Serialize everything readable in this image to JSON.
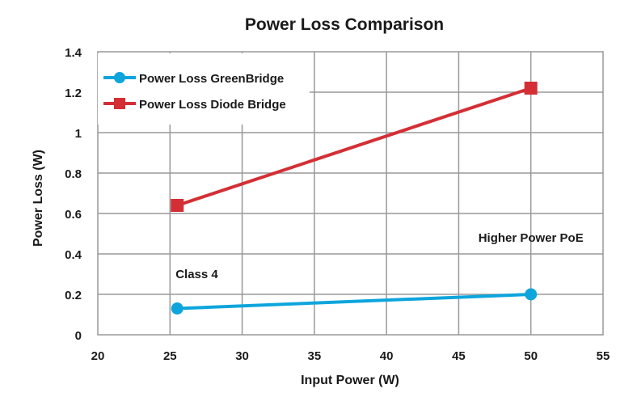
{
  "chart_data": {
    "type": "line",
    "title": "Power Loss Comparison",
    "xlabel": "Input Power (W)",
    "ylabel": "Power Loss (W)",
    "xlim": [
      20,
      55
    ],
    "ylim": [
      0,
      1.4
    ],
    "xticks": [
      20,
      25,
      30,
      35,
      40,
      45,
      50,
      55
    ],
    "yticks": [
      0,
      0.2,
      0.4,
      0.6,
      0.8,
      1,
      1.2,
      1.4
    ],
    "ytick_labels": [
      "0",
      "0.2",
      "0.4",
      "0.6",
      "0.8",
      "1",
      "1.2",
      "1.4"
    ],
    "grid": true,
    "legend_position": "top-left",
    "series": [
      {
        "name": "Power Loss GreenBridge",
        "color": "#0ea5dc",
        "marker": "circle",
        "x": [
          25.5,
          50
        ],
        "y": [
          0.13,
          0.2
        ]
      },
      {
        "name": "Power Loss Diode Bridge",
        "color": "#d32f35",
        "marker": "square",
        "x": [
          25.5,
          50
        ],
        "y": [
          0.64,
          1.22
        ]
      }
    ],
    "annotations": [
      {
        "text": "Class 4",
        "x": 25.5,
        "y": 0.3
      },
      {
        "text": "Higher Power PoE",
        "x": 50,
        "y": 0.48
      }
    ]
  }
}
